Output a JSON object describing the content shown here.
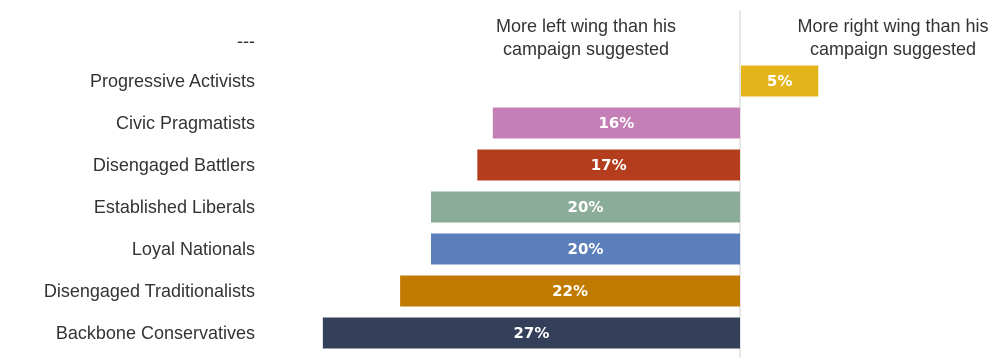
{
  "chart_data": {
    "type": "bar",
    "orientation": "horizontal",
    "header_row_label": "---",
    "left_header": [
      "More left wing than his",
      "campaign suggested"
    ],
    "right_header": [
      "More right wing than his",
      "campaign suggested"
    ],
    "categories": [
      "Progressive Activists",
      "Civic Pragmatists",
      "Disengaged Battlers",
      "Established Liberals",
      "Loyal Nationals",
      "Disengaged Traditionalists",
      "Backbone Conservatives"
    ],
    "series": [
      {
        "values": [
          5,
          -16,
          -17,
          -20,
          -20,
          -22,
          -27
        ]
      }
    ],
    "value_labels": [
      "5%",
      "16%",
      "17%",
      "20%",
      "20%",
      "22%",
      "27%"
    ],
    "colors": [
      "#e3b51b",
      "#c480b6",
      "#b33d1d",
      "#8aac99",
      "#5a7fba",
      "#c17a00",
      "#34405a"
    ],
    "axis_color": "#cccccc",
    "grid": false,
    "legend": "none"
  }
}
